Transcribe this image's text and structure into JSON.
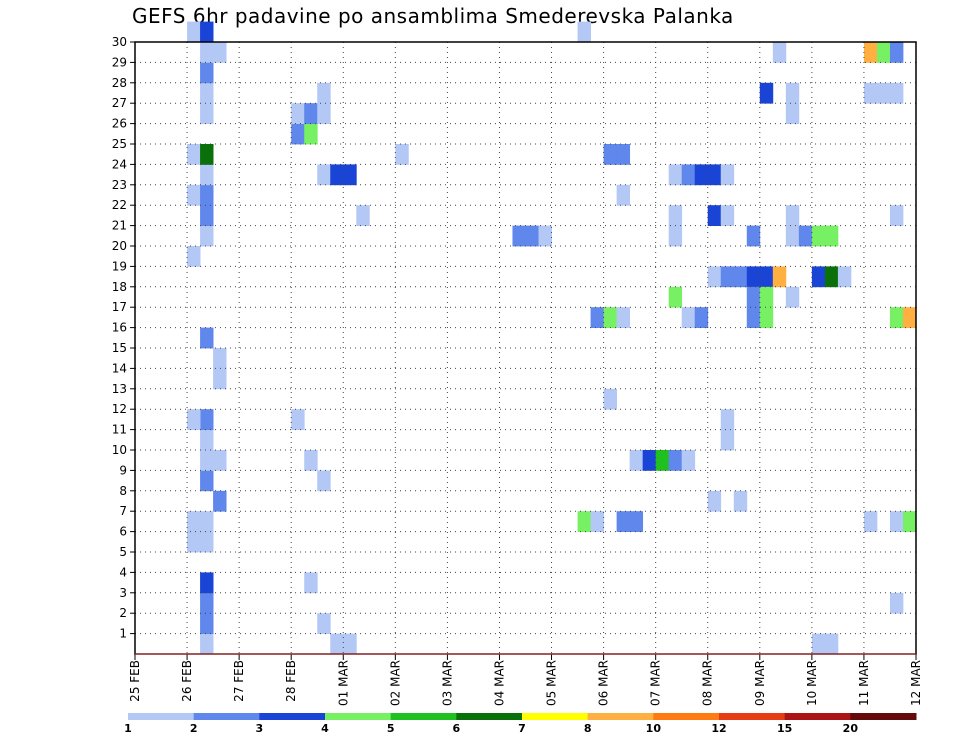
{
  "chart_data": {
    "type": "heatmap",
    "title": "GEFS 6hr padavine po ansamblima Smederevska Palanka",
    "x_tick_labels": [
      "25 FEB",
      "26 FEB",
      "27 FEB",
      "28 FEB",
      "01 MAR",
      "02 MAR",
      "03 MAR",
      "04 MAR",
      "05 MAR",
      "06 MAR",
      "07 MAR",
      "08 MAR",
      "09 MAR",
      "10 MAR",
      "11 MAR",
      "12 MAR"
    ],
    "y_ticks": [
      1,
      2,
      3,
      4,
      5,
      6,
      7,
      8,
      9,
      10,
      11,
      12,
      13,
      14,
      15,
      16,
      17,
      18,
      19,
      20,
      21,
      22,
      23,
      24,
      25,
      26,
      27,
      28,
      29,
      30
    ],
    "x_unit": "6-hour step",
    "xlim": [
      0,
      60
    ],
    "ylim": [
      0,
      30
    ],
    "grid": true,
    "colorbar": {
      "labels": [
        "1",
        "2",
        "3",
        "4",
        "5",
        "6",
        "7",
        "8",
        "10",
        "12",
        "15",
        "20"
      ],
      "colors": [
        "#b4c8f5",
        "#5f87ec",
        "#1a44d6",
        "#78f064",
        "#20c020",
        "#0a700a",
        "#ffff00",
        "#ffb040",
        "#ff7a10",
        "#e63c14",
        "#aa1414",
        "#640a0a"
      ]
    },
    "cells": [
      [
        5,
        0,
        1
      ],
      [
        5,
        1,
        2
      ],
      [
        5,
        2,
        2
      ],
      [
        5,
        3,
        3
      ],
      [
        5,
        5,
        1
      ],
      [
        4,
        5,
        1
      ],
      [
        4,
        6,
        1
      ],
      [
        5,
        6,
        1
      ],
      [
        6,
        7,
        2
      ],
      [
        5,
        8,
        2
      ],
      [
        5,
        9,
        1
      ],
      [
        6,
        9,
        1
      ],
      [
        5,
        10,
        1
      ],
      [
        5,
        11,
        2
      ],
      [
        4,
        11,
        1
      ],
      [
        5,
        15,
        2
      ],
      [
        6,
        13,
        1
      ],
      [
        6,
        14,
        1
      ],
      [
        4,
        19,
        1
      ],
      [
        5,
        20,
        1
      ],
      [
        5,
        21,
        2
      ],
      [
        4,
        22,
        1
      ],
      [
        5,
        22,
        2
      ],
      [
        5,
        23,
        1
      ],
      [
        4,
        24,
        1
      ],
      [
        5,
        24,
        6
      ],
      [
        5,
        26,
        1
      ],
      [
        5,
        27,
        1
      ],
      [
        5,
        28,
        2
      ],
      [
        5,
        29,
        1
      ],
      [
        6,
        29,
        1
      ],
      [
        4,
        30,
        1
      ],
      [
        5,
        30,
        3
      ],
      [
        13,
        3,
        1
      ],
      [
        14,
        1,
        1
      ],
      [
        14,
        8,
        1
      ],
      [
        13,
        9,
        1
      ],
      [
        12,
        11,
        1
      ],
      [
        12,
        25,
        2
      ],
      [
        13,
        25,
        4
      ],
      [
        12,
        26,
        1
      ],
      [
        13,
        26,
        2
      ],
      [
        14,
        26,
        1
      ],
      [
        14,
        27,
        1
      ],
      [
        14,
        23,
        1
      ],
      [
        15,
        23,
        3
      ],
      [
        16,
        23,
        3
      ],
      [
        17,
        21,
        1
      ],
      [
        15,
        0,
        1
      ],
      [
        16,
        0,
        1
      ],
      [
        20,
        24,
        1
      ],
      [
        29,
        20,
        2
      ],
      [
        30,
        20,
        2
      ],
      [
        31,
        20,
        1
      ],
      [
        34,
        30,
        1
      ],
      [
        34,
        6,
        4
      ],
      [
        35,
        6,
        1
      ],
      [
        35,
        16,
        2
      ],
      [
        36,
        16,
        4
      ],
      [
        37,
        16,
        1
      ],
      [
        37,
        6,
        2
      ],
      [
        38,
        6,
        2
      ],
      [
        36,
        12,
        1
      ],
      [
        36,
        24,
        2
      ],
      [
        37,
        24,
        2
      ],
      [
        37,
        22,
        1
      ],
      [
        38,
        9,
        1
      ],
      [
        39,
        9,
        3
      ],
      [
        40,
        9,
        5
      ],
      [
        41,
        9,
        2
      ],
      [
        42,
        9,
        1
      ],
      [
        41,
        17,
        4
      ],
      [
        41,
        20,
        1
      ],
      [
        41,
        21,
        1
      ],
      [
        41,
        23,
        1
      ],
      [
        42,
        23,
        2
      ],
      [
        43,
        23,
        3
      ],
      [
        44,
        23,
        3
      ],
      [
        45,
        23,
        1
      ],
      [
        42,
        16,
        1
      ],
      [
        43,
        16,
        2
      ],
      [
        44,
        18,
        1
      ],
      [
        45,
        18,
        2
      ],
      [
        46,
        18,
        2
      ],
      [
        47,
        18,
        3
      ],
      [
        48,
        18,
        3
      ],
      [
        49,
        18,
        8
      ],
      [
        47,
        17,
        2
      ],
      [
        47,
        16,
        2
      ],
      [
        48,
        17,
        4
      ],
      [
        48,
        16,
        4
      ],
      [
        44,
        7,
        1
      ],
      [
        45,
        11,
        1
      ],
      [
        45,
        10,
        1
      ],
      [
        46,
        7,
        1
      ],
      [
        44,
        21,
        3
      ],
      [
        45,
        21,
        1
      ],
      [
        47,
        20,
        2
      ],
      [
        48,
        27,
        3
      ],
      [
        49,
        29,
        1
      ],
      [
        50,
        26,
        1
      ],
      [
        50,
        27,
        1
      ],
      [
        50,
        17,
        1
      ],
      [
        50,
        20,
        1
      ],
      [
        50,
        21,
        1
      ],
      [
        51,
        20,
        2
      ],
      [
        52,
        18,
        3
      ],
      [
        53,
        18,
        6
      ],
      [
        54,
        18,
        1
      ],
      [
        52,
        20,
        4
      ],
      [
        53,
        20,
        4
      ],
      [
        52,
        0,
        1
      ],
      [
        53,
        0,
        1
      ],
      [
        56,
        29,
        8
      ],
      [
        57,
        29,
        4
      ],
      [
        58,
        29,
        2
      ],
      [
        56,
        27,
        1
      ],
      [
        57,
        27,
        1
      ],
      [
        58,
        27,
        1
      ],
      [
        56,
        6,
        1
      ],
      [
        58,
        6,
        1
      ],
      [
        59,
        6,
        4
      ],
      [
        58,
        16,
        4
      ],
      [
        59,
        16,
        8
      ],
      [
        58,
        21,
        1
      ],
      [
        58,
        2,
        1
      ]
    ]
  }
}
